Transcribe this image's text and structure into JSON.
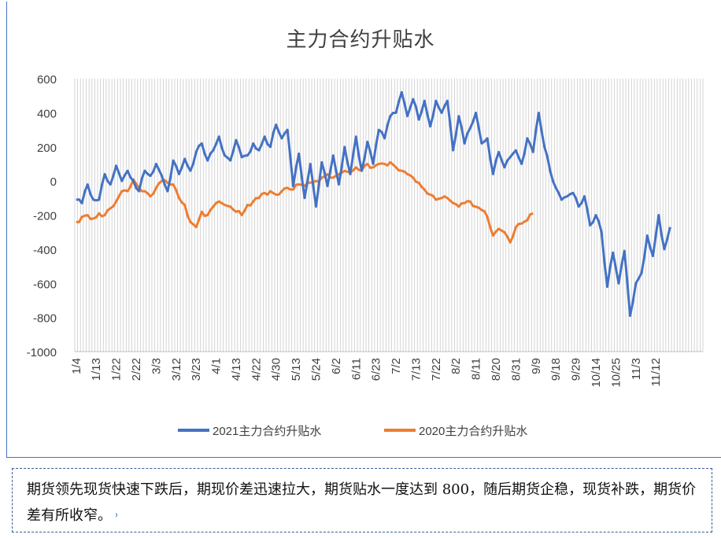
{
  "caption": {
    "text": "期货领先现货快速下跌后，期现价差迅速拉大，期货贴水一度达到 800，随后期货企稳，现货补跌，期货价差有所收窄。",
    "mark": "˒"
  },
  "legend": {
    "series_2021": "2021主力合约升贴水",
    "series_2020": "2020主力合约升贴水"
  },
  "colors": {
    "series_2021": "#4472c4",
    "series_2020": "#ed7d31",
    "grid": "#c9c9c9",
    "axis_text": "#404040"
  },
  "chart_data": {
    "type": "line",
    "title": "主力合约升贴水",
    "xlabel": "",
    "ylabel": "",
    "ylim": [
      -1000,
      600
    ],
    "yticks": [
      600,
      400,
      200,
      0,
      -200,
      -400,
      -600,
      -800,
      -1000
    ],
    "grid": "vertical gridlines per trading day",
    "legend_position": "bottom",
    "x_ticks": [
      "1/4",
      "1/13",
      "1/22",
      "2/22",
      "3/3",
      "3/12",
      "3/23",
      "4/1",
      "4/13",
      "4/22",
      "4/30",
      "5/13",
      "5/24",
      "6/2",
      "6/11",
      "6/23",
      "7/2",
      "7/13",
      "7/22",
      "8/2",
      "8/11",
      "8/20",
      "8/31",
      "9/9",
      "9/18",
      "9/29",
      "10/14",
      "10/25",
      "11/3",
      "11/12"
    ],
    "x_tick_index": [
      0,
      7,
      14,
      21,
      28,
      35,
      42,
      49,
      56,
      63,
      70,
      77,
      84,
      91,
      98,
      105,
      112,
      119,
      126,
      133,
      140,
      147,
      154,
      161,
      168,
      175,
      182,
      189,
      196,
      203
    ],
    "n_points": 220,
    "series": [
      {
        "name": "2021主力合约升贴水",
        "color": "#4472c4",
        "anchors": [
          [
            0,
            -110
          ],
          [
            2,
            -130
          ],
          [
            4,
            -20
          ],
          [
            6,
            -110
          ],
          [
            8,
            -110
          ],
          [
            10,
            40
          ],
          [
            12,
            -20
          ],
          [
            14,
            90
          ],
          [
            16,
            0
          ],
          [
            18,
            60
          ],
          [
            20,
            0
          ],
          [
            22,
            -60
          ],
          [
            24,
            60
          ],
          [
            26,
            30
          ],
          [
            28,
            100
          ],
          [
            30,
            30
          ],
          [
            32,
            -60
          ],
          [
            34,
            120
          ],
          [
            36,
            40
          ],
          [
            38,
            130
          ],
          [
            40,
            60
          ],
          [
            42,
            170
          ],
          [
            44,
            220
          ],
          [
            46,
            120
          ],
          [
            48,
            180
          ],
          [
            50,
            260
          ],
          [
            52,
            150
          ],
          [
            54,
            120
          ],
          [
            56,
            240
          ],
          [
            58,
            140
          ],
          [
            60,
            150
          ],
          [
            62,
            220
          ],
          [
            64,
            180
          ],
          [
            66,
            260
          ],
          [
            68,
            200
          ],
          [
            70,
            330
          ],
          [
            72,
            250
          ],
          [
            74,
            300
          ],
          [
            76,
            -30
          ],
          [
            78,
            160
          ],
          [
            80,
            -100
          ],
          [
            82,
            100
          ],
          [
            84,
            -150
          ],
          [
            86,
            110
          ],
          [
            88,
            -30
          ],
          [
            90,
            150
          ],
          [
            92,
            -20
          ],
          [
            94,
            200
          ],
          [
            96,
            40
          ],
          [
            98,
            260
          ],
          [
            100,
            60
          ],
          [
            102,
            230
          ],
          [
            104,
            100
          ],
          [
            106,
            300
          ],
          [
            108,
            250
          ],
          [
            110,
            380
          ],
          [
            112,
            400
          ],
          [
            114,
            520
          ],
          [
            116,
            380
          ],
          [
            118,
            480
          ],
          [
            120,
            360
          ],
          [
            122,
            470
          ],
          [
            124,
            320
          ],
          [
            126,
            470
          ],
          [
            128,
            400
          ],
          [
            130,
            470
          ],
          [
            132,
            180
          ],
          [
            134,
            380
          ],
          [
            136,
            220
          ],
          [
            138,
            310
          ],
          [
            140,
            400
          ],
          [
            142,
            220
          ],
          [
            144,
            250
          ],
          [
            146,
            40
          ],
          [
            148,
            170
          ],
          [
            150,
            80
          ],
          [
            152,
            140
          ],
          [
            154,
            180
          ],
          [
            156,
            100
          ],
          [
            158,
            250
          ],
          [
            160,
            170
          ],
          [
            162,
            400
          ],
          [
            164,
            200
          ],
          [
            166,
            60
          ],
          [
            168,
            -40
          ],
          [
            170,
            -110
          ],
          [
            172,
            -90
          ],
          [
            174,
            -70
          ],
          [
            176,
            -150
          ],
          [
            178,
            -90
          ],
          [
            180,
            -260
          ],
          [
            182,
            -200
          ],
          [
            184,
            -300
          ],
          [
            186,
            -620
          ],
          [
            188,
            -420
          ],
          [
            190,
            -600
          ],
          [
            192,
            -410
          ],
          [
            194,
            -790
          ],
          [
            196,
            -600
          ],
          [
            198,
            -540
          ],
          [
            200,
            -320
          ],
          [
            202,
            -440
          ],
          [
            204,
            -200
          ],
          [
            206,
            -400
          ],
          [
            208,
            -270
          ]
        ]
      },
      {
        "name": "2020主力合约升贴水",
        "color": "#ed7d31",
        "anchors": [
          [
            0,
            -240
          ],
          [
            4,
            -200
          ],
          [
            6,
            -220
          ],
          [
            8,
            -190
          ],
          [
            10,
            -200
          ],
          [
            12,
            -160
          ],
          [
            14,
            -120
          ],
          [
            16,
            -60
          ],
          [
            18,
            -60
          ],
          [
            20,
            10
          ],
          [
            22,
            -40
          ],
          [
            24,
            -60
          ],
          [
            26,
            -90
          ],
          [
            28,
            -40
          ],
          [
            30,
            0
          ],
          [
            32,
            -10
          ],
          [
            34,
            -20
          ],
          [
            36,
            -100
          ],
          [
            38,
            -140
          ],
          [
            40,
            -240
          ],
          [
            42,
            -270
          ],
          [
            44,
            -180
          ],
          [
            46,
            -200
          ],
          [
            48,
            -150
          ],
          [
            50,
            -120
          ],
          [
            52,
            -140
          ],
          [
            54,
            -150
          ],
          [
            56,
            -180
          ],
          [
            58,
            -200
          ],
          [
            60,
            -140
          ],
          [
            62,
            -120
          ],
          [
            64,
            -100
          ],
          [
            66,
            -70
          ],
          [
            68,
            -60
          ],
          [
            70,
            -80
          ],
          [
            72,
            -60
          ],
          [
            74,
            -40
          ],
          [
            76,
            -50
          ],
          [
            78,
            -20
          ],
          [
            80,
            -30
          ],
          [
            82,
            -10
          ],
          [
            84,
            0
          ],
          [
            86,
            20
          ],
          [
            88,
            40
          ],
          [
            90,
            20
          ],
          [
            92,
            40
          ],
          [
            94,
            60
          ],
          [
            96,
            50
          ],
          [
            98,
            80
          ],
          [
            100,
            60
          ],
          [
            102,
            100
          ],
          [
            104,
            80
          ],
          [
            106,
            100
          ],
          [
            108,
            100
          ],
          [
            110,
            110
          ],
          [
            112,
            80
          ],
          [
            114,
            60
          ],
          [
            116,
            40
          ],
          [
            118,
            20
          ],
          [
            120,
            -10
          ],
          [
            122,
            -50
          ],
          [
            124,
            -80
          ],
          [
            126,
            -110
          ],
          [
            128,
            -100
          ],
          [
            130,
            -100
          ],
          [
            132,
            -130
          ],
          [
            134,
            -150
          ],
          [
            136,
            -130
          ],
          [
            138,
            -120
          ],
          [
            140,
            -150
          ],
          [
            142,
            -170
          ],
          [
            144,
            -210
          ],
          [
            146,
            -320
          ],
          [
            148,
            -280
          ],
          [
            150,
            -300
          ],
          [
            152,
            -360
          ],
          [
            154,
            -270
          ],
          [
            156,
            -250
          ],
          [
            158,
            -230
          ],
          [
            160,
            -190
          ]
        ]
      }
    ]
  }
}
